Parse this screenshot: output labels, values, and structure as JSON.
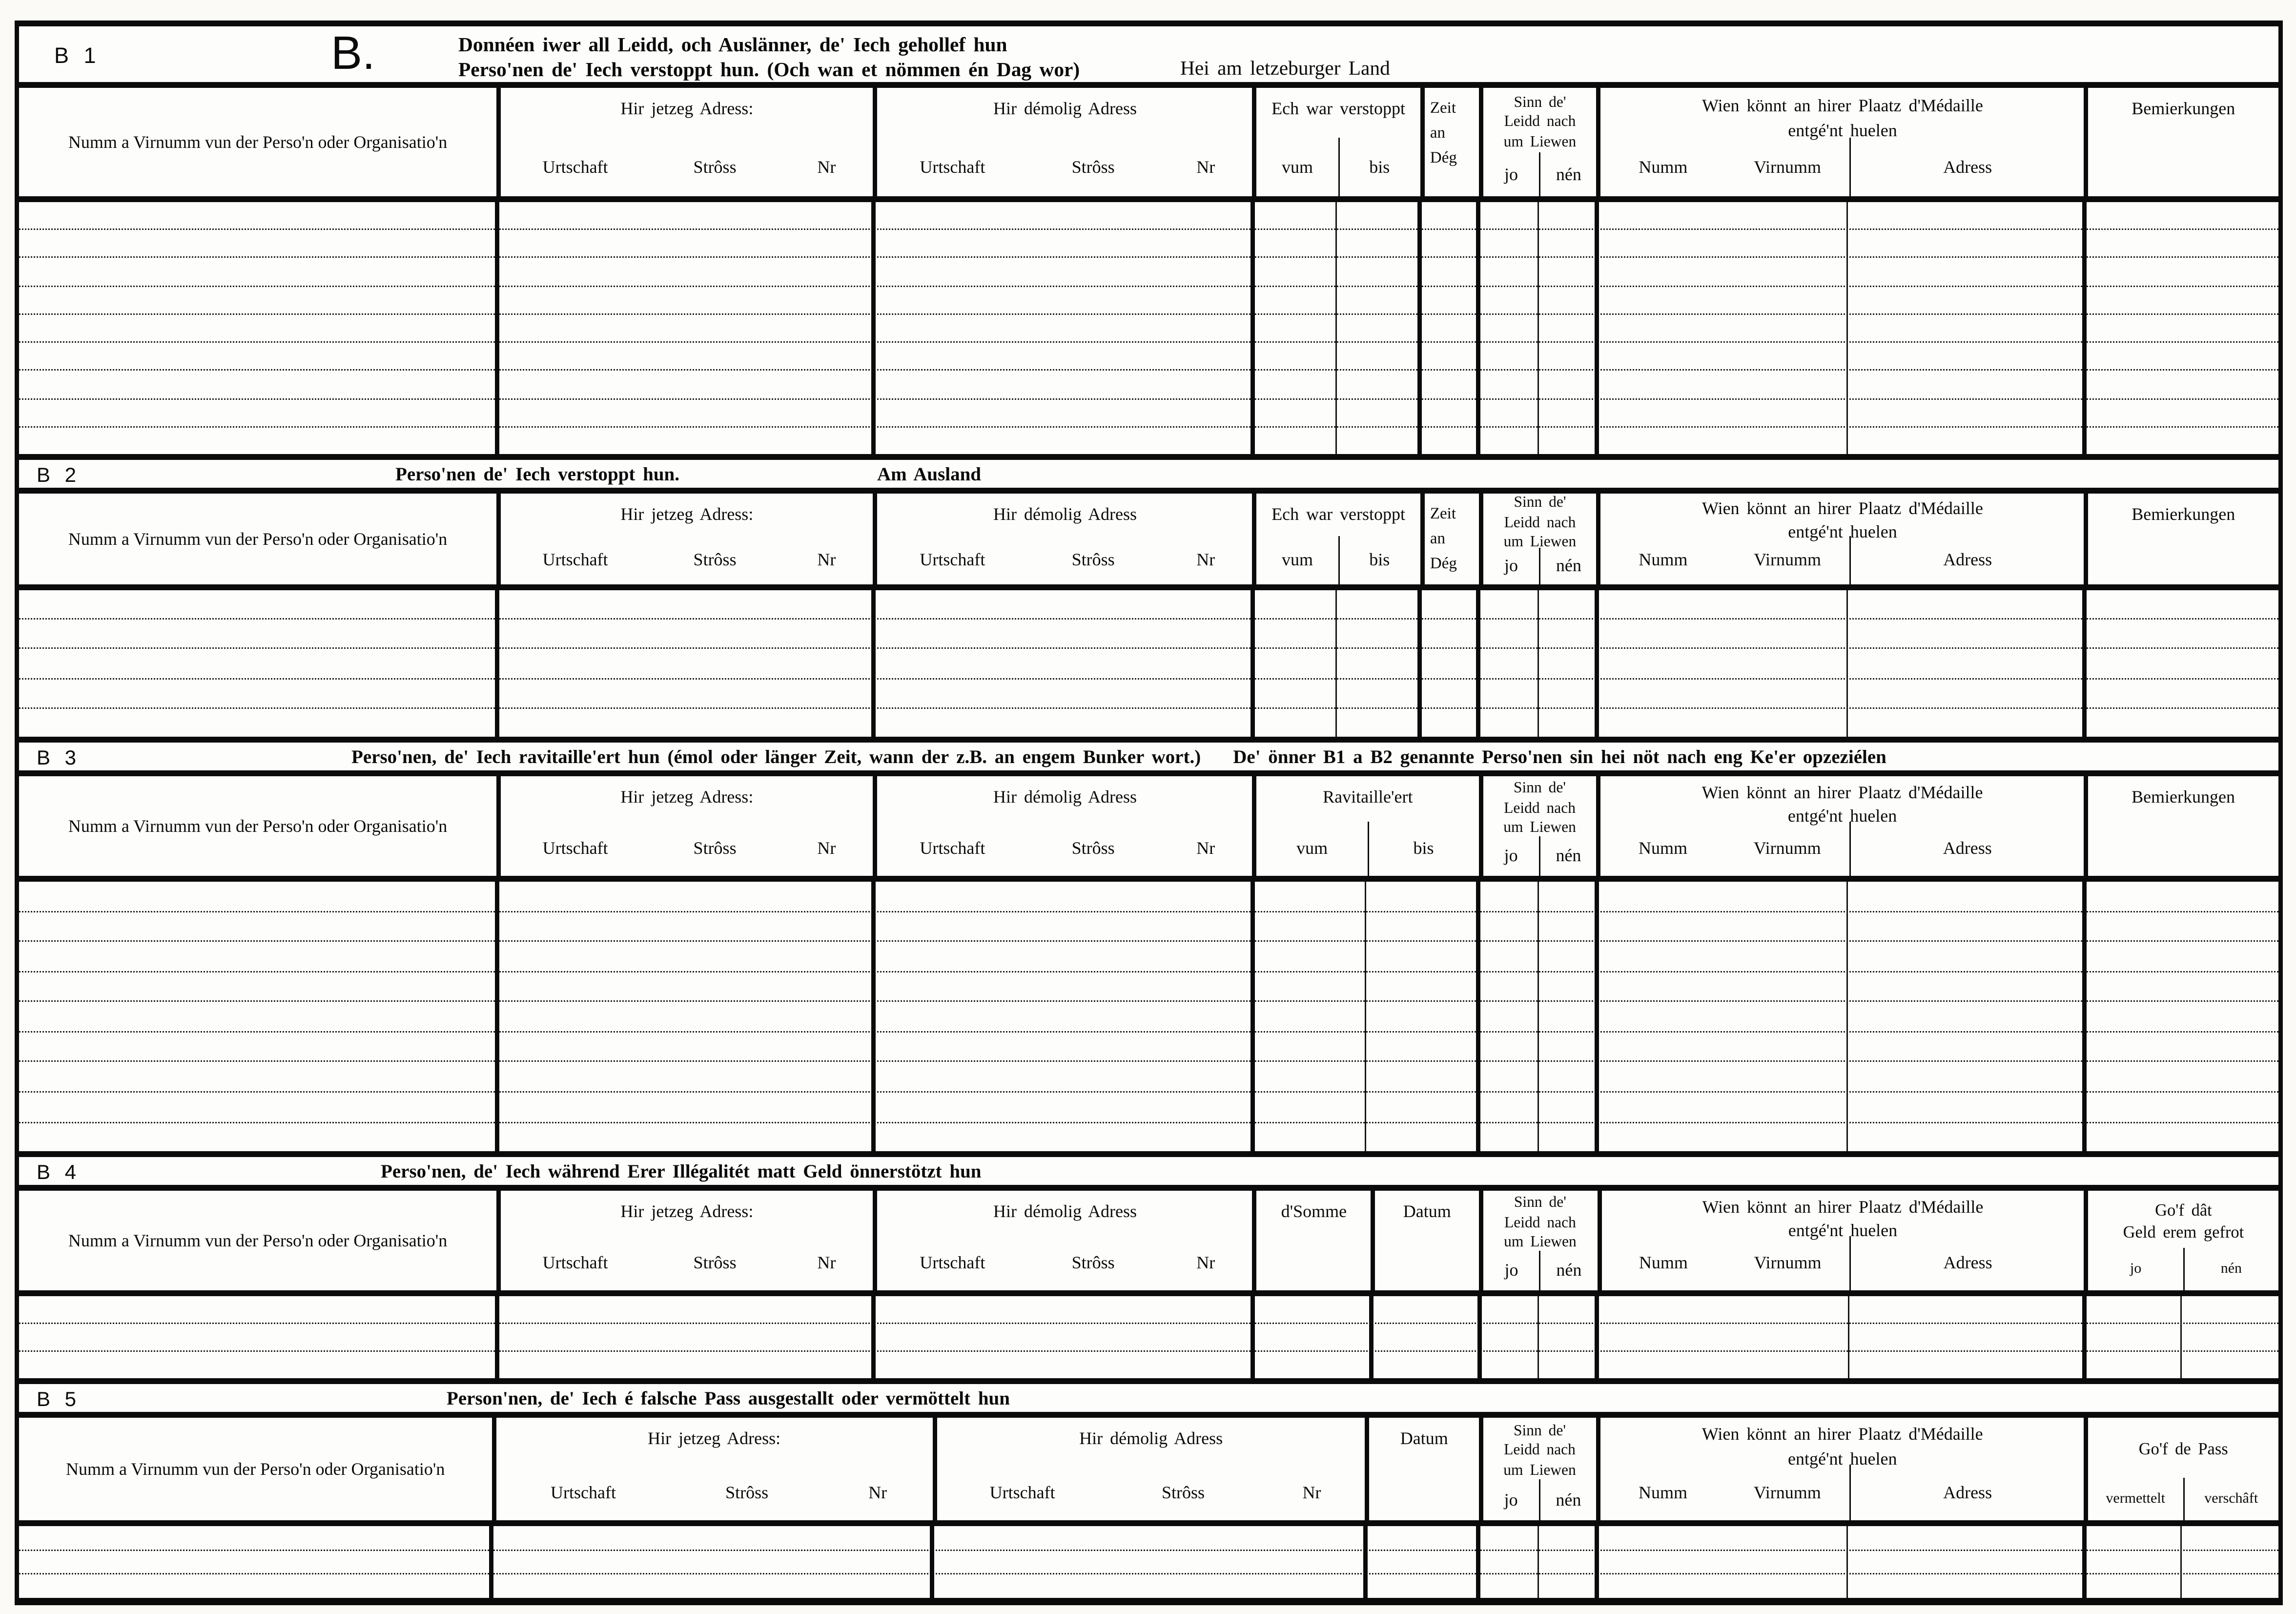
{
  "colors": {
    "ink": "#0b0b0b",
    "paper": "#fbfaf7"
  },
  "form_letter": "B.",
  "sections": [
    {
      "id": "B 1",
      "title_line1": "Donnéen iwer all Leidd, och Auslänner, de' Iech gehollef hun",
      "title_line2": "Perso'nen de' Iech verstoppt hun. (Och wan et nömmen én Dag wor)",
      "note": "Hei am letzeburger Land",
      "ruled_lines": 8
    },
    {
      "id": "B 2",
      "title": "Perso'nen de' Iech verstoppt hun.",
      "note": "Am Ausland",
      "ruled_lines": 4
    },
    {
      "id": "B 3",
      "title": "Perso'nen, de' Iech ravitaille'ert hun (émol oder länger Zeit, wann der z.B. an engem Bunker wort.)",
      "note": "De' önner B1 a B2 genannte Perso'nen sin hei nöt nach eng Ke'er opzeziélen",
      "ruled_lines": 8
    },
    {
      "id": "B 4",
      "title": "Perso'nen, de' Iech während Erer Illégalitét matt Geld önnerstötzt hun",
      "ruled_lines": 2
    },
    {
      "id": "B 5",
      "title": "Person'nen, de' Iech é falsche Pass ausgestallt oder vermöttelt hun",
      "ruled_lines": 2
    }
  ],
  "columns": {
    "name": "Numm a Virnumm vun der Perso'n oder Organisatio'n",
    "jetzeg": {
      "label": "Hir jetzeg Adress:",
      "subs": [
        "Urtschaft",
        "Strôss",
        "Nr"
      ]
    },
    "demolig": {
      "label": "Hir démolig Adress",
      "subs": [
        "Urtschaft",
        "Strôss",
        "Nr"
      ]
    },
    "verstoppt": {
      "label": "Ech war verstoppt",
      "subs": [
        "vum",
        "bis"
      ]
    },
    "zeit": {
      "lines": [
        "Zeit",
        "an",
        "Dég"
      ]
    },
    "sinn": {
      "lines": [
        "Sinn de'",
        "Leidd nach",
        "um Liewen"
      ],
      "subs": [
        "jo",
        "nén"
      ]
    },
    "ravitaillert": {
      "label": "Ravitaille'ert",
      "subs": [
        "vum",
        "bis"
      ]
    },
    "somme": "d'Somme",
    "datum": "Datum",
    "wien": {
      "lines": [
        "Wien könnt an hirer Plaatz d'Médaille",
        "entgé'nt huelen"
      ],
      "subs": [
        "Numm",
        "Virnumm",
        "Adress"
      ]
    },
    "bemierkungen": "Bemierkungen",
    "gof_geld": {
      "lines": [
        "Go'f dât",
        "Geld erem gefrot"
      ],
      "subs": [
        "jo",
        "nén"
      ]
    },
    "gof_pass": {
      "label": "Go'f de Pass",
      "subs": [
        "vermettelt",
        "verschâft"
      ]
    }
  }
}
